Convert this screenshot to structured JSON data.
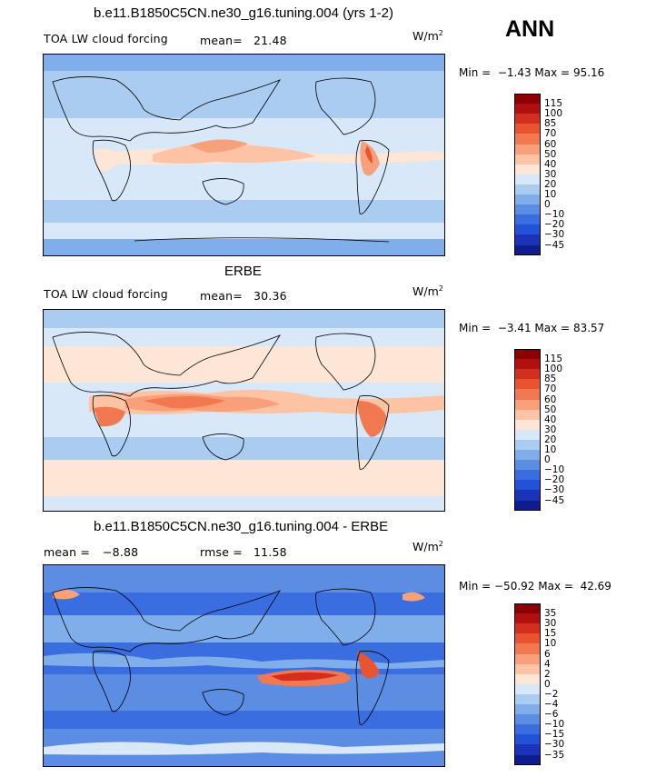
{
  "header": {
    "case_title": "b.e11.B1850C5CN.ne30_g16.tuning.004 (yrs 1-2)",
    "season": "ANN"
  },
  "units": {
    "base": "W/m",
    "exp": "2"
  },
  "panels": [
    {
      "id": "model",
      "title": "",
      "field_label": "TOA LW cloud forcing",
      "mean_label": "mean=",
      "mean_value": "21.48",
      "rmse_label": "",
      "rmse_value": "",
      "min_label": "Min =",
      "min_value": "−1.43",
      "max_label": "Max =",
      "max_value": "95.16",
      "ticks": [
        "115",
        "100",
        "85",
        "70",
        "60",
        "50",
        "40",
        "30",
        "20",
        "10",
        "0",
        "−10",
        "−20",
        "−30",
        "−45"
      ],
      "colors": [
        "#8b0000",
        "#b21010",
        "#d32f1e",
        "#e8542f",
        "#f2794f",
        "#f8a07a",
        "#fcc3a5",
        "#fde6d6",
        "#d8e8f8",
        "#aaccf0",
        "#80aeea",
        "#5b8ee3",
        "#3a6ee0",
        "#2351d8",
        "#1a33b8",
        "#0e1c8e"
      ]
    },
    {
      "id": "obs",
      "title": "ERBE",
      "field_label": "TOA LW cloud forcing",
      "mean_label": "mean=",
      "mean_value": "30.36",
      "rmse_label": "",
      "rmse_value": "",
      "min_label": "Min =",
      "min_value": "−3.41",
      "max_label": "Max =",
      "max_value": "83.57",
      "ticks": [
        "115",
        "100",
        "85",
        "70",
        "60",
        "50",
        "40",
        "30",
        "20",
        "10",
        "0",
        "−10",
        "−20",
        "−30",
        "−45"
      ],
      "colors": [
        "#8b0000",
        "#b21010",
        "#d32f1e",
        "#e8542f",
        "#f2794f",
        "#f8a07a",
        "#fcc3a5",
        "#fde6d6",
        "#d8e8f8",
        "#aaccf0",
        "#80aeea",
        "#5b8ee3",
        "#3a6ee0",
        "#2351d8",
        "#1a33b8",
        "#0e1c8e"
      ]
    },
    {
      "id": "diff",
      "title": "b.e11.B1850C5CN.ne30_g16.tuning.004 - ERBE",
      "field_label": "",
      "mean_label": "mean =",
      "mean_value": "−8.88",
      "rmse_label": "rmse =",
      "rmse_value": "11.58",
      "min_label": "Min =",
      "min_value": "−50.92",
      "max_label": "Max =",
      "max_value": "42.69",
      "ticks": [
        "35",
        "30",
        "15",
        "10",
        "6",
        "4",
        "2",
        "0",
        "−2",
        "−4",
        "−6",
        "−10",
        "−15",
        "−30",
        "−35"
      ],
      "colors": [
        "#8b0000",
        "#b21010",
        "#d32f1e",
        "#e8542f",
        "#f2794f",
        "#f8a07a",
        "#fcc3a5",
        "#fde6d6",
        "#d8e8f8",
        "#aaccf0",
        "#80aeea",
        "#5b8ee3",
        "#3a6ee0",
        "#2351d8",
        "#1a33b8",
        "#0e1c8e"
      ]
    }
  ]
}
